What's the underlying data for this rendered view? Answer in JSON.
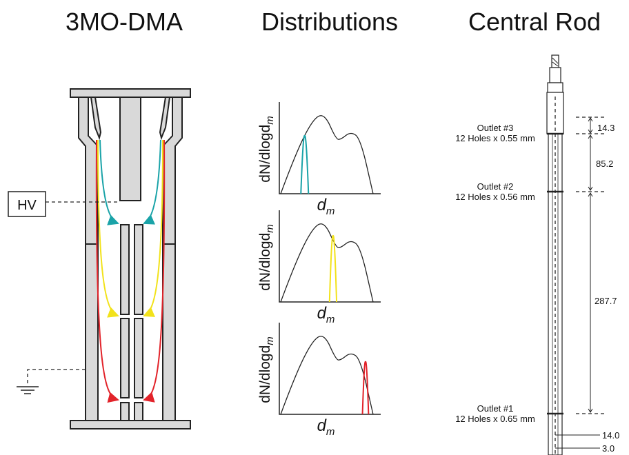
{
  "titles": {
    "dma": "3MO-DMA",
    "distributions": "Distributions",
    "rod": "Central Rod"
  },
  "dma": {
    "hv_label": "HV",
    "colors": {
      "outlet3": "#1aa3a8",
      "outlet2": "#f2e21b",
      "outlet1": "#e2232a"
    }
  },
  "distributions": {
    "ylabel": "dN/dlogd",
    "ylabel_sub": "m",
    "xlabel": "d",
    "xlabel_sub": "m",
    "panels": [
      {
        "highlight": "#1aa3a8"
      },
      {
        "highlight": "#f2e21b"
      },
      {
        "highlight": "#e2232a"
      }
    ]
  },
  "rod": {
    "outlets": [
      {
        "name": "Outlet #3",
        "spec": "12 Holes x 0.55 mm"
      },
      {
        "name": "Outlet #2",
        "spec": "12 Holes x 0.56 mm"
      },
      {
        "name": "Outlet #1",
        "spec": "12 Holes x 0.65 mm"
      }
    ],
    "dimensions": [
      "14.3",
      "85.2",
      "287.7",
      "14.0",
      "3.0"
    ]
  }
}
